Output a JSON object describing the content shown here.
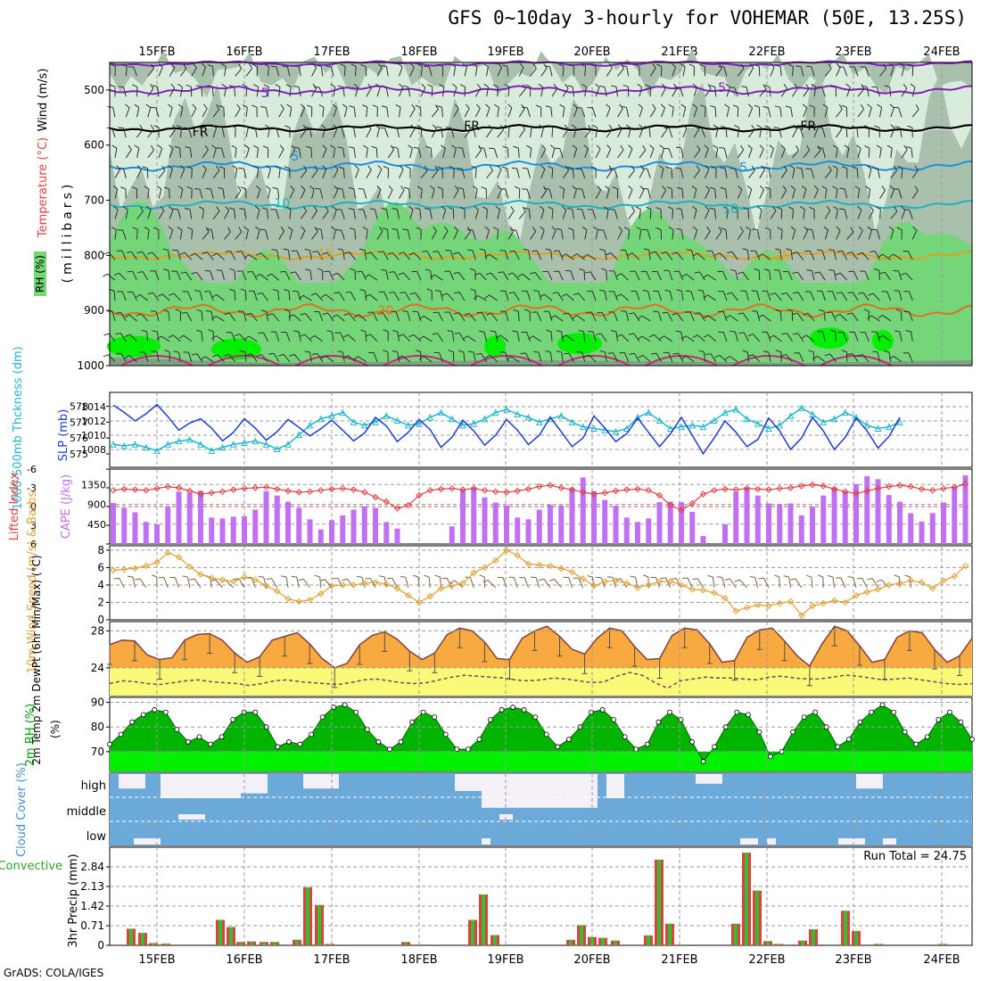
{
  "title": "GFS 0~10day 3-hourly for VOHEMAR (50E, 13.25S)",
  "credit": "GrADS: COLA/IGES",
  "colors": {
    "rh_light": "#d9ecdc",
    "rh_mid": "#a9c0ad",
    "rh_dark": "#7fa085",
    "rh_green": "#74d678",
    "rh_bright": "#00f000",
    "slp": "#1f3bd1",
    "thick": "#23b6cc",
    "li": "#e04040",
    "cape": "#c070f0",
    "wind10": "#e0a030",
    "barb10": "#806040",
    "temp_fill": "#f8aa40",
    "dew_fill": "#f8fa78",
    "dew_line": "#804060",
    "rh2m": "#00b400",
    "rh2m_bright": "#00f000",
    "cloud": "#6aa9d8",
    "cloud_gap": "#f4f0f8",
    "precip": "#e04040",
    "precip_conv": "#30c030"
  },
  "dates": [
    "15FEB",
    "16FEB",
    "17FEB",
    "18FEB",
    "19FEB",
    "20FEB",
    "21FEB",
    "22FEB",
    "23FEB",
    "24FEB"
  ],
  "panels": {
    "upper": {
      "ylabel_wind": "Wind (m/s)",
      "ylabel_temp": "Temperature (°C)",
      "ylabel_rh": "RH (%)",
      "ylabel_units": "(millibars)",
      "ticks": [
        500,
        600,
        700,
        800,
        900,
        1000
      ],
      "contour_labels": [
        {
          "text": "5",
          "color": "#8020c0",
          "x": 0.18,
          "p": 505
        },
        {
          "text": "5",
          "color": "#8020c0",
          "x": 0.71,
          "p": 495
        },
        {
          "text": "FR",
          "color": "#000000",
          "x": 0.105,
          "p": 575
        },
        {
          "text": "FR",
          "color": "#000000",
          "x": 0.42,
          "p": 565
        },
        {
          "text": "FR",
          "color": "#000000",
          "x": 0.81,
          "p": 565
        },
        {
          "text": "5",
          "color": "#1d8ee0",
          "x": 0.215,
          "p": 620
        },
        {
          "text": "5",
          "color": "#1d8ee0",
          "x": 0.735,
          "p": 640
        },
        {
          "text": "10",
          "color": "#20b0c0",
          "x": 0.2,
          "p": 705
        },
        {
          "text": "10",
          "color": "#20b0c0",
          "x": 0.72,
          "p": 715
        },
        {
          "text": "15",
          "color": "#e0a020",
          "x": 0.25,
          "p": 795
        },
        {
          "text": "15",
          "color": "#e0a020",
          "x": 0.78,
          "p": 800
        },
        {
          "text": "20",
          "color": "#e07020",
          "x": 0.32,
          "p": 900
        }
      ]
    },
    "slp": {
      "ylabel_thick": "1000-500mb Thckness (dm)",
      "ylabel_slp": "SLP (mb)",
      "left_ticks": [
        "578",
        "577",
        "576",
        "575"
      ],
      "right_ticks": [
        "1014",
        "1012",
        "1010",
        "1008"
      ]
    },
    "cape": {
      "ylabel_li": "Lifted Index",
      "ylabel_cape": "CAPE (J/kg)",
      "left_ticks": [
        "-6",
        "-3",
        "0",
        "3",
        "6"
      ],
      "right_ticks": [
        "1350",
        "900",
        "450"
      ]
    },
    "wind10": {
      "ylabel": "10m Wind Speed (m/s) & Barbs",
      "ticks": [
        "8",
        "6",
        "4",
        "2",
        "0"
      ]
    },
    "temp2m": {
      "ylabel": "2m Temp 2m DewPt (6hr Min/Max) (°C)",
      "ticks": [
        "28",
        "24"
      ]
    },
    "rh2m": {
      "ylabel": "2m RH (%)",
      "ticks": [
        "90",
        "80",
        "70"
      ]
    },
    "cloud": {
      "ylabel": "Cloud Cover (%)",
      "levels": [
        "high",
        "middle",
        "low"
      ]
    },
    "precip": {
      "ylabel_left": "Total / Rain Convective",
      "ylabel": "3hr Precip (mm)",
      "ticks": [
        "2.84",
        "2.13",
        "1.42",
        "0.71",
        "0"
      ],
      "run_total": "Run Total = 24.75"
    }
  },
  "chart_data": {
    "type": "multi-panel meteogram",
    "x_start": "14FEB 06Z",
    "x_step_hours": 3,
    "slp_mb": [
      1011.2,
      1012.8,
      1014.2,
      1013.2,
      1012.0,
      1013.0,
      1014.3,
      1012.6,
      1010.7,
      1011.7,
      1012.3,
      1011.0,
      1009.2,
      1010.4,
      1012.3,
      1011.0,
      1009.3,
      1010.5,
      1012.2,
      1011.1,
      1009.9,
      1010.9,
      1012.1,
      1010.7,
      1009.2,
      1010.3,
      1012.5,
      1011.3,
      1009.1,
      1010.4,
      1012.2,
      1010.8,
      1008.3,
      1009.7,
      1012.1,
      1010.6,
      1008.6,
      1010.0,
      1012.2,
      1010.7,
      1008.7,
      1010.0,
      1012.5,
      1010.5,
      1008.4,
      1009.6,
      1012.7,
      1011.0,
      1009.1,
      1010.2,
      1012.4,
      1010.4,
      1008.4,
      1010.2,
      1012.5,
      1010.0,
      1007.4,
      1009.6,
      1012.0,
      1010.4,
      1008.4,
      1009.4,
      1012.4,
      1010.6,
      1008.0,
      1009.6,
      1012.5,
      1010.6,
      1008.0,
      1009.7,
      1012.4,
      1010.6,
      1008.2,
      1009.8,
      1012.5
    ],
    "thickness_dm": [
      575.8,
      575.9,
      575.6,
      575.5,
      575.6,
      575.4,
      575.2,
      575.6,
      575.8,
      575.9,
      575.6,
      575.2,
      575.4,
      575.6,
      575.7,
      575.8,
      575.6,
      575.3,
      575.6,
      576.2,
      576.8,
      577.2,
      577.4,
      577.6,
      577.0,
      576.8,
      577.0,
      577.4,
      577.1,
      576.8,
      576.9,
      577.3,
      577.6,
      577.2,
      576.8,
      576.9,
      577.2,
      577.6,
      577.8,
      577.5,
      577.3,
      577.0,
      577.2,
      577.4,
      577.0,
      576.7,
      576.6,
      576.5,
      576.4,
      576.6,
      577.3,
      577.6,
      577.1,
      576.6,
      576.7,
      576.8,
      576.7,
      577.1,
      577.6,
      577.8,
      577.2,
      576.9,
      576.6,
      576.8,
      577.4,
      577.9,
      577.5,
      577.0,
      577.2,
      577.6,
      577.3,
      576.8,
      576.6,
      576.7,
      577.0
    ],
    "lifted_index": [
      -2.5,
      -2.8,
      -2.6,
      -2.8,
      -2.7,
      -2.6,
      -2.9,
      -3.2,
      -3.0,
      -2.5,
      -2.0,
      -2.2,
      -2.4,
      -2.7,
      -2.9,
      -3.0,
      -3.1,
      -2.8,
      -2.5,
      -2.3,
      -2.4,
      -2.6,
      -2.8,
      -2.9,
      -2.7,
      -2.3,
      -1.5,
      -0.8,
      0.3,
      -0.2,
      -1.8,
      -2.6,
      -2.8,
      -2.9,
      -2.7,
      -2.9,
      -2.6,
      -2.4,
      -2.3,
      -2.5,
      -2.8,
      -3.2,
      -3.4,
      -3.0,
      -2.7,
      -2.3,
      -2.0,
      -2.2,
      -2.5,
      -2.7,
      -2.8,
      -2.6,
      -1.8,
      -0.2,
      0.6,
      -0.5,
      -2.0,
      -2.6,
      -2.8,
      -2.7,
      -2.9,
      -2.8,
      -2.7,
      -2.9,
      -3.0,
      -3.3,
      -3.5,
      -3.3,
      -2.8,
      -2.4,
      -2.1,
      -2.5,
      -2.9,
      -3.2,
      -3.4,
      -3.2,
      -2.8,
      -2.6,
      -2.9,
      -3.1,
      -3.6,
      -3.8,
      -3.3,
      -2.6,
      -2.2,
      -1.8,
      -1.6,
      -1.9
    ],
    "cape_jkg": [
      900,
      1000,
      930,
      820,
      720,
      500,
      450,
      850,
      1190,
      1160,
      1210,
      600,
      580,
      620,
      630,
      780,
      1200,
      1100,
      960,
      820,
      560,
      330,
      540,
      650,
      780,
      850,
      820,
      500,
      350,
      0,
      0,
      0,
      0,
      400,
      1230,
      1290,
      1060,
      940,
      880,
      600,
      560,
      780,
      890,
      880,
      1270,
      1510,
      1200,
      1000,
      870,
      600,
      500,
      580,
      950,
      960,
      950,
      730,
      180,
      0,
      450,
      1180,
      1290,
      1100,
      920,
      900,
      920,
      650,
      850,
      1100,
      1280,
      1200,
      1360,
      1540,
      1470,
      1110,
      960,
      700,
      510,
      700,
      940,
      1310,
      1560,
      900,
      740,
      530,
      360,
      260,
      310
    ],
    "wind10_ms": [
      6.5,
      6.1,
      5.7,
      5.8,
      5.9,
      6.2,
      6.6,
      7.7,
      7.2,
      6.1,
      5.2,
      4.8,
      4.6,
      4.4,
      4.9,
      4.6,
      3.9,
      3.3,
      2.4,
      2.1,
      2.3,
      3.0,
      3.9,
      4.0,
      4.0,
      4.2,
      4.3,
      4.1,
      3.6,
      2.8,
      2.0,
      2.7,
      3.6,
      3.9,
      4.2,
      5.4,
      6.0,
      6.8,
      8.0,
      7.4,
      6.4,
      6.3,
      6.2,
      5.9,
      5.5,
      4.7,
      3.9,
      4.4,
      4.5,
      4.2,
      3.7,
      4.0,
      4.4,
      4.4,
      4.0,
      3.5,
      3.4,
      3.1,
      2.5,
      1.0,
      1.4,
      1.7,
      1.6,
      1.9,
      2.1,
      0.5,
      1.6,
      1.9,
      2.2,
      2.0,
      2.8,
      3.2,
      3.5,
      4.0,
      4.2,
      4.5,
      4.3,
      3.6,
      4.5,
      5.0,
      6.2
    ],
    "temp2m_c": [
      26.5,
      27.0,
      26.9,
      25.4,
      24.9,
      25.1,
      27.0,
      27.6,
      27.7,
      27.0,
      25.6,
      24.6,
      25.2,
      27.0,
      27.4,
      27.8,
      26.6,
      25.0,
      24.0,
      24.5,
      26.5,
      27.5,
      27.9,
      27.1,
      25.8,
      24.9,
      25.6,
      27.6,
      28.3,
      28.0,
      26.8,
      25.0,
      24.9,
      27.2,
      28.0,
      28.5,
      27.4,
      26.0,
      25.5,
      27.2,
      28.3,
      28.0,
      26.3,
      24.9,
      25.0,
      27.5,
      28.3,
      28.1,
      26.6,
      24.6,
      24.8,
      27.3,
      28.1,
      28.3,
      26.9,
      25.3,
      24.2,
      26.6,
      28.5,
      28.0,
      26.4,
      24.6,
      24.9,
      27.3,
      28.0,
      27.8,
      26.0,
      24.6,
      25.3,
      27.2
    ],
    "dewpt2m_c": [
      22.3,
      22.6,
      22.5,
      22.3,
      22.2,
      22.4,
      22.6,
      22.7,
      22.5,
      22.4,
      22.3,
      22.1,
      22.3,
      22.6,
      22.7,
      22.5,
      22.4,
      22.3,
      22.2,
      22.4,
      22.7,
      22.8,
      22.6,
      22.4,
      22.3,
      22.4,
      22.7,
      23.0,
      23.2,
      23.1,
      23.0,
      22.9,
      22.7,
      22.6,
      22.7,
      22.9,
      22.8,
      22.6,
      22.4,
      22.5,
      23.1,
      23.5,
      23.2,
      22.4,
      21.8,
      22.6,
      22.8,
      23.0,
      22.9,
      22.9,
      22.8,
      22.7,
      23.0,
      23.1,
      22.9,
      22.8,
      22.8,
      23.0,
      23.2,
      23.1,
      22.9,
      22.7,
      22.8,
      22.9,
      22.7,
      22.5,
      22.3,
      22.2,
      22.3
    ],
    "rh2m_pct": [
      73,
      77,
      82,
      85,
      87,
      86,
      79,
      74,
      76,
      73,
      76,
      83,
      86,
      86,
      80,
      72,
      74,
      73,
      77,
      84,
      88,
      89,
      86,
      79,
      74,
      71,
      74,
      82,
      86,
      84,
      77,
      71,
      71,
      75,
      83,
      87,
      88,
      87,
      84,
      77,
      72,
      75,
      80,
      86,
      87,
      83,
      76,
      71,
      73,
      82,
      86,
      83,
      74,
      66,
      72,
      80,
      86,
      85,
      78,
      68,
      70,
      78,
      84,
      86,
      80,
      72,
      75,
      82,
      86,
      89,
      86,
      78,
      73,
      76,
      83,
      86,
      82,
      75
    ]
  }
}
